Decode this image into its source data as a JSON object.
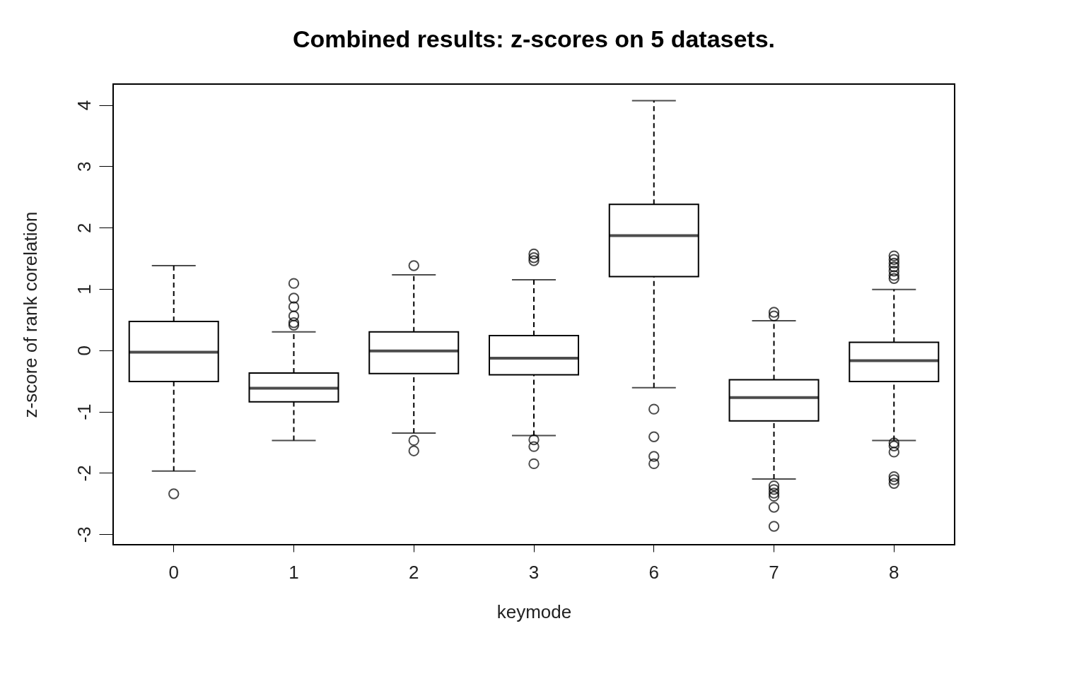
{
  "chart_data": {
    "type": "box",
    "title": "Combined results: z-scores on 5 datasets.",
    "xlabel": "keymode",
    "ylabel": "z-score of rank corelation",
    "categories": [
      "0",
      "1",
      "2",
      "3",
      "6",
      "7",
      "8"
    ],
    "ylim": [
      -3.17,
      4.34
    ],
    "yticks": [
      -3,
      -2,
      -1,
      0,
      1,
      2,
      3,
      4
    ],
    "grid": false,
    "boxes": [
      {
        "low": -1.97,
        "q1": -0.51,
        "median": -0.03,
        "q3": 0.47,
        "high": 1.38,
        "outliers": [
          -2.34
        ]
      },
      {
        "low": -1.47,
        "q1": -0.84,
        "median": -0.62,
        "q3": -0.37,
        "high": 0.3,
        "outliers": [
          1.09,
          0.85,
          0.71,
          0.56,
          0.45,
          0.41
        ]
      },
      {
        "low": -1.35,
        "q1": -0.38,
        "median": -0.01,
        "q3": 0.3,
        "high": 1.23,
        "outliers": [
          1.38,
          -1.47,
          -1.64
        ]
      },
      {
        "low": -1.39,
        "q1": -0.4,
        "median": -0.13,
        "q3": 0.24,
        "high": 1.15,
        "outliers": [
          1.57,
          1.51,
          1.46,
          -1.46,
          -1.57,
          -1.85
        ]
      },
      {
        "low": -0.61,
        "q1": 1.2,
        "median": 1.87,
        "q3": 2.38,
        "high": 4.07,
        "outliers": [
          -0.96,
          -1.41,
          -1.73,
          -1.85
        ]
      },
      {
        "low": -2.1,
        "q1": -1.15,
        "median": -0.77,
        "q3": -0.48,
        "high": 0.48,
        "outliers": [
          0.62,
          0.56,
          -2.21,
          -2.27,
          -2.33,
          -2.38,
          -2.56,
          -2.87
        ]
      },
      {
        "low": -1.47,
        "q1": -0.51,
        "median": -0.17,
        "q3": 0.13,
        "high": 0.99,
        "outliers": [
          1.54,
          1.48,
          1.42,
          1.36,
          1.29,
          1.22,
          1.17,
          -1.51,
          -1.56,
          -1.66,
          -2.06,
          -2.11,
          -2.17
        ]
      }
    ]
  }
}
